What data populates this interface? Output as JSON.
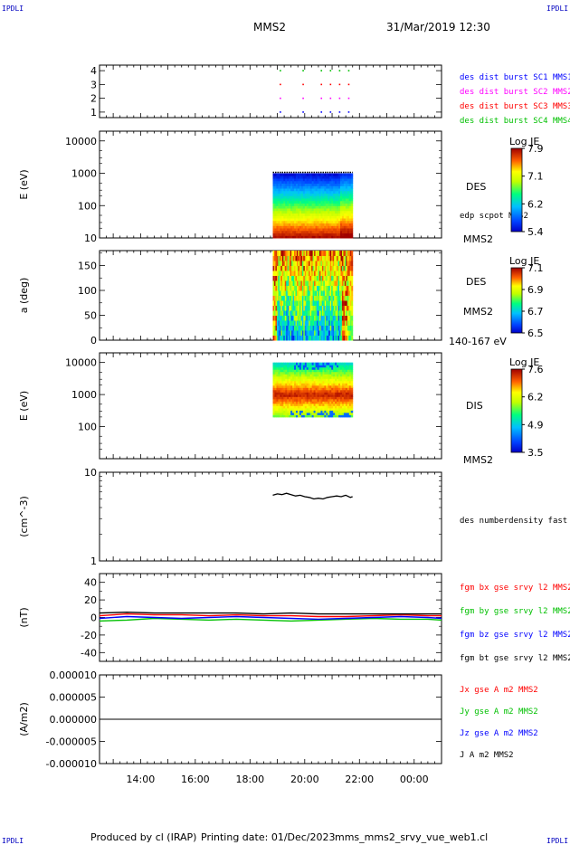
{
  "corner_labels": {
    "top_left": "IPDLI",
    "top_right": "IPDLI",
    "bottom_left": "IPDLI",
    "bottom_right": "IPDLI"
  },
  "header": {
    "spacecraft": "MMS2",
    "datetime": "31/Mar/2019 12:30"
  },
  "footer": {
    "producer": "Produced by cl (IRAP)",
    "printing_date": "Printing date: 01/Dec/2023",
    "filename": "mms_mms2_srvy_vue_web1.cl"
  },
  "colors": {
    "mms1": "#0000ff",
    "mms2": "#ff00ff",
    "mms3": "#ff0000",
    "mms4": "#00c000",
    "bx": "#ff0000",
    "by": "#00c000",
    "bz": "#0000ff",
    "bt": "#000000"
  },
  "chart_data": [
    {
      "type": "scatter",
      "panel": "burst-availability",
      "y_ticks": [
        "1",
        "2",
        "3",
        "4"
      ],
      "ylim": [
        0.6,
        4.4
      ],
      "series": [
        {
          "name": "des dist burst SC1 MMS1",
          "color": "#0000ff",
          "y": 1,
          "x": [
            "19:05",
            "19:55",
            "20:35",
            "20:55",
            "21:15",
            "21:35"
          ]
        },
        {
          "name": "des dist burst SC2 MMS2",
          "color": "#ff00ff",
          "y": 2,
          "x": [
            "19:05",
            "19:55",
            "20:35",
            "20:55",
            "21:15",
            "21:35"
          ]
        },
        {
          "name": "des dist burst SC3 MMS3",
          "color": "#ff0000",
          "y": 3,
          "x": [
            "19:05",
            "19:55",
            "20:35",
            "20:55",
            "21:15",
            "21:35"
          ]
        },
        {
          "name": "des dist burst SC4 MMS4",
          "color": "#00c000",
          "y": 4,
          "x": [
            "19:05",
            "19:55",
            "20:35",
            "20:55",
            "21:15",
            "21:35"
          ]
        }
      ]
    },
    {
      "type": "heatmap",
      "panel": "des-energy-spectrogram",
      "ylabel": "E (eV)",
      "y_scale": "log",
      "ylim": [
        10,
        20000
      ],
      "y_ticks": [
        "10",
        "100",
        "1000",
        "10000"
      ],
      "data_time_range": [
        "18:50",
        "21:45"
      ],
      "energy_range_eV": [
        10,
        1000
      ],
      "label": "DES",
      "overlay_label": "edp scpot MMS2",
      "spacecraft": "MMS2",
      "colorbar": {
        "title": "Log JE",
        "ticks": [
          "7.9",
          "7.1",
          "6.2",
          "5.4"
        ],
        "range": [
          5.4,
          7.9
        ]
      }
    },
    {
      "type": "heatmap",
      "panel": "des-pitch-angle",
      "ylabel": "a (deg)",
      "ylim": [
        0,
        180
      ],
      "y_ticks": [
        "0",
        "50",
        "100",
        "150"
      ],
      "data_time_range": [
        "18:50",
        "21:45"
      ],
      "label": "DES",
      "spacecraft": "MMS2",
      "energy_band": "140-167 eV",
      "colorbar": {
        "title": "Log JE",
        "ticks": [
          "7.1",
          "6.9",
          "6.7",
          "6.5"
        ],
        "range": [
          6.5,
          7.1
        ]
      }
    },
    {
      "type": "heatmap",
      "panel": "dis-energy-spectrogram",
      "ylabel": "E (eV)",
      "y_scale": "log",
      "ylim": [
        10,
        20000
      ],
      "y_ticks": [
        "100",
        "1000",
        "10000"
      ],
      "data_time_range": [
        "18:50",
        "21:45"
      ],
      "energy_range_eV": [
        200,
        10000
      ],
      "label": "DIS",
      "spacecraft": "MMS2",
      "colorbar": {
        "title": "Log JE",
        "ticks": [
          "7.6",
          "6.2",
          "4.9",
          "3.5"
        ],
        "range": [
          3.5,
          7.6
        ]
      }
    },
    {
      "type": "line",
      "panel": "des-density",
      "ylabel": "(cm^-3)",
      "y_scale": "log",
      "ylim": [
        1,
        10
      ],
      "y_ticks": [
        "1",
        "10"
      ],
      "series": [
        {
          "name": "des numberdensity fast M",
          "color": "#000000",
          "x": [
            "18:50",
            "19:00",
            "19:10",
            "19:20",
            "19:30",
            "19:40",
            "19:50",
            "20:00",
            "20:10",
            "20:20",
            "20:30",
            "20:40",
            "20:50",
            "21:00",
            "21:10",
            "21:20",
            "21:30",
            "21:40",
            "21:45"
          ],
          "y": [
            5.5,
            5.7,
            5.6,
            5.8,
            5.6,
            5.4,
            5.5,
            5.3,
            5.2,
            5.0,
            5.1,
            5.0,
            5.2,
            5.3,
            5.4,
            5.3,
            5.5,
            5.2,
            5.3
          ]
        }
      ]
    },
    {
      "type": "line",
      "panel": "fgm-magnetic-field",
      "ylabel": "(nT)",
      "ylim": [
        -50,
        50
      ],
      "y_ticks": [
        "-40",
        "-20",
        "0",
        "20",
        "40"
      ],
      "series": [
        {
          "name": "fgm bx gse srvy l2 MMS2",
          "color": "#ff0000",
          "x": [
            "12:30",
            "13:30",
            "14:30",
            "15:30",
            "16:30",
            "17:30",
            "18:30",
            "19:30",
            "20:30",
            "21:30",
            "22:30",
            "23:30",
            "00:30",
            "01:00"
          ],
          "y": [
            2,
            4,
            3,
            3,
            2,
            3,
            2,
            2,
            1,
            1,
            2,
            3,
            2,
            2
          ]
        },
        {
          "name": "fgm by gse srvy l2 MMS2",
          "color": "#00c000",
          "x": [
            "12:30",
            "13:30",
            "14:30",
            "15:30",
            "16:30",
            "17:30",
            "18:30",
            "19:30",
            "20:30",
            "21:30",
            "22:30",
            "23:30",
            "00:30",
            "01:00"
          ],
          "y": [
            -4,
            -3,
            -1,
            -2,
            -3,
            -2,
            -3,
            -4,
            -3,
            -2,
            -1,
            -2,
            -2,
            -3
          ]
        },
        {
          "name": "fgm bz gse srvy l2 MMS2",
          "color": "#0000ff",
          "x": [
            "12:30",
            "13:30",
            "14:30",
            "15:30",
            "16:30",
            "17:30",
            "18:30",
            "19:30",
            "20:30",
            "21:30",
            "22:30",
            "23:30",
            "00:30",
            "01:00"
          ],
          "y": [
            -1,
            1,
            0,
            -1,
            0,
            1,
            0,
            -1,
            -2,
            -1,
            0,
            1,
            0,
            -1
          ]
        },
        {
          "name": "fgm bt gse srvy l2 MMS2",
          "color": "#000000",
          "x": [
            "12:30",
            "13:30",
            "14:30",
            "15:30",
            "16:30",
            "17:30",
            "18:30",
            "19:30",
            "20:30",
            "21:30",
            "22:30",
            "23:30",
            "00:30",
            "01:00"
          ],
          "y": [
            5,
            6,
            5,
            5,
            5,
            5,
            4,
            5,
            4,
            4,
            4,
            4,
            4,
            4
          ]
        }
      ]
    },
    {
      "type": "line",
      "panel": "current-density",
      "ylabel": "(A/m2)",
      "ylim": [
        -1e-05,
        1e-05
      ],
      "y_ticks": [
        "-0.000010",
        "-0.000005",
        "0.000000",
        "0.000005",
        "0.000010"
      ],
      "x_ticks": [
        "14:00",
        "16:00",
        "18:00",
        "20:00",
        "22:00",
        "00:00"
      ],
      "x_range": [
        "12:30",
        "01:00"
      ],
      "series": [
        {
          "name": "Jx gse A m2 MMS2",
          "color": "#ff0000",
          "x": [
            "12:30",
            "01:00"
          ],
          "y": [
            0,
            0
          ]
        },
        {
          "name": "Jy gse A m2 MMS2",
          "color": "#00c000",
          "x": [
            "12:30",
            "01:00"
          ],
          "y": [
            0,
            0
          ]
        },
        {
          "name": "Jz gse A m2 MMS2",
          "color": "#0000ff",
          "x": [
            "12:30",
            "01:00"
          ],
          "y": [
            0,
            0
          ]
        },
        {
          "name": "J A m2 MMS2",
          "color": "#000000",
          "x": [
            "12:30",
            "01:00"
          ],
          "y": [
            0,
            0
          ]
        }
      ]
    }
  ]
}
